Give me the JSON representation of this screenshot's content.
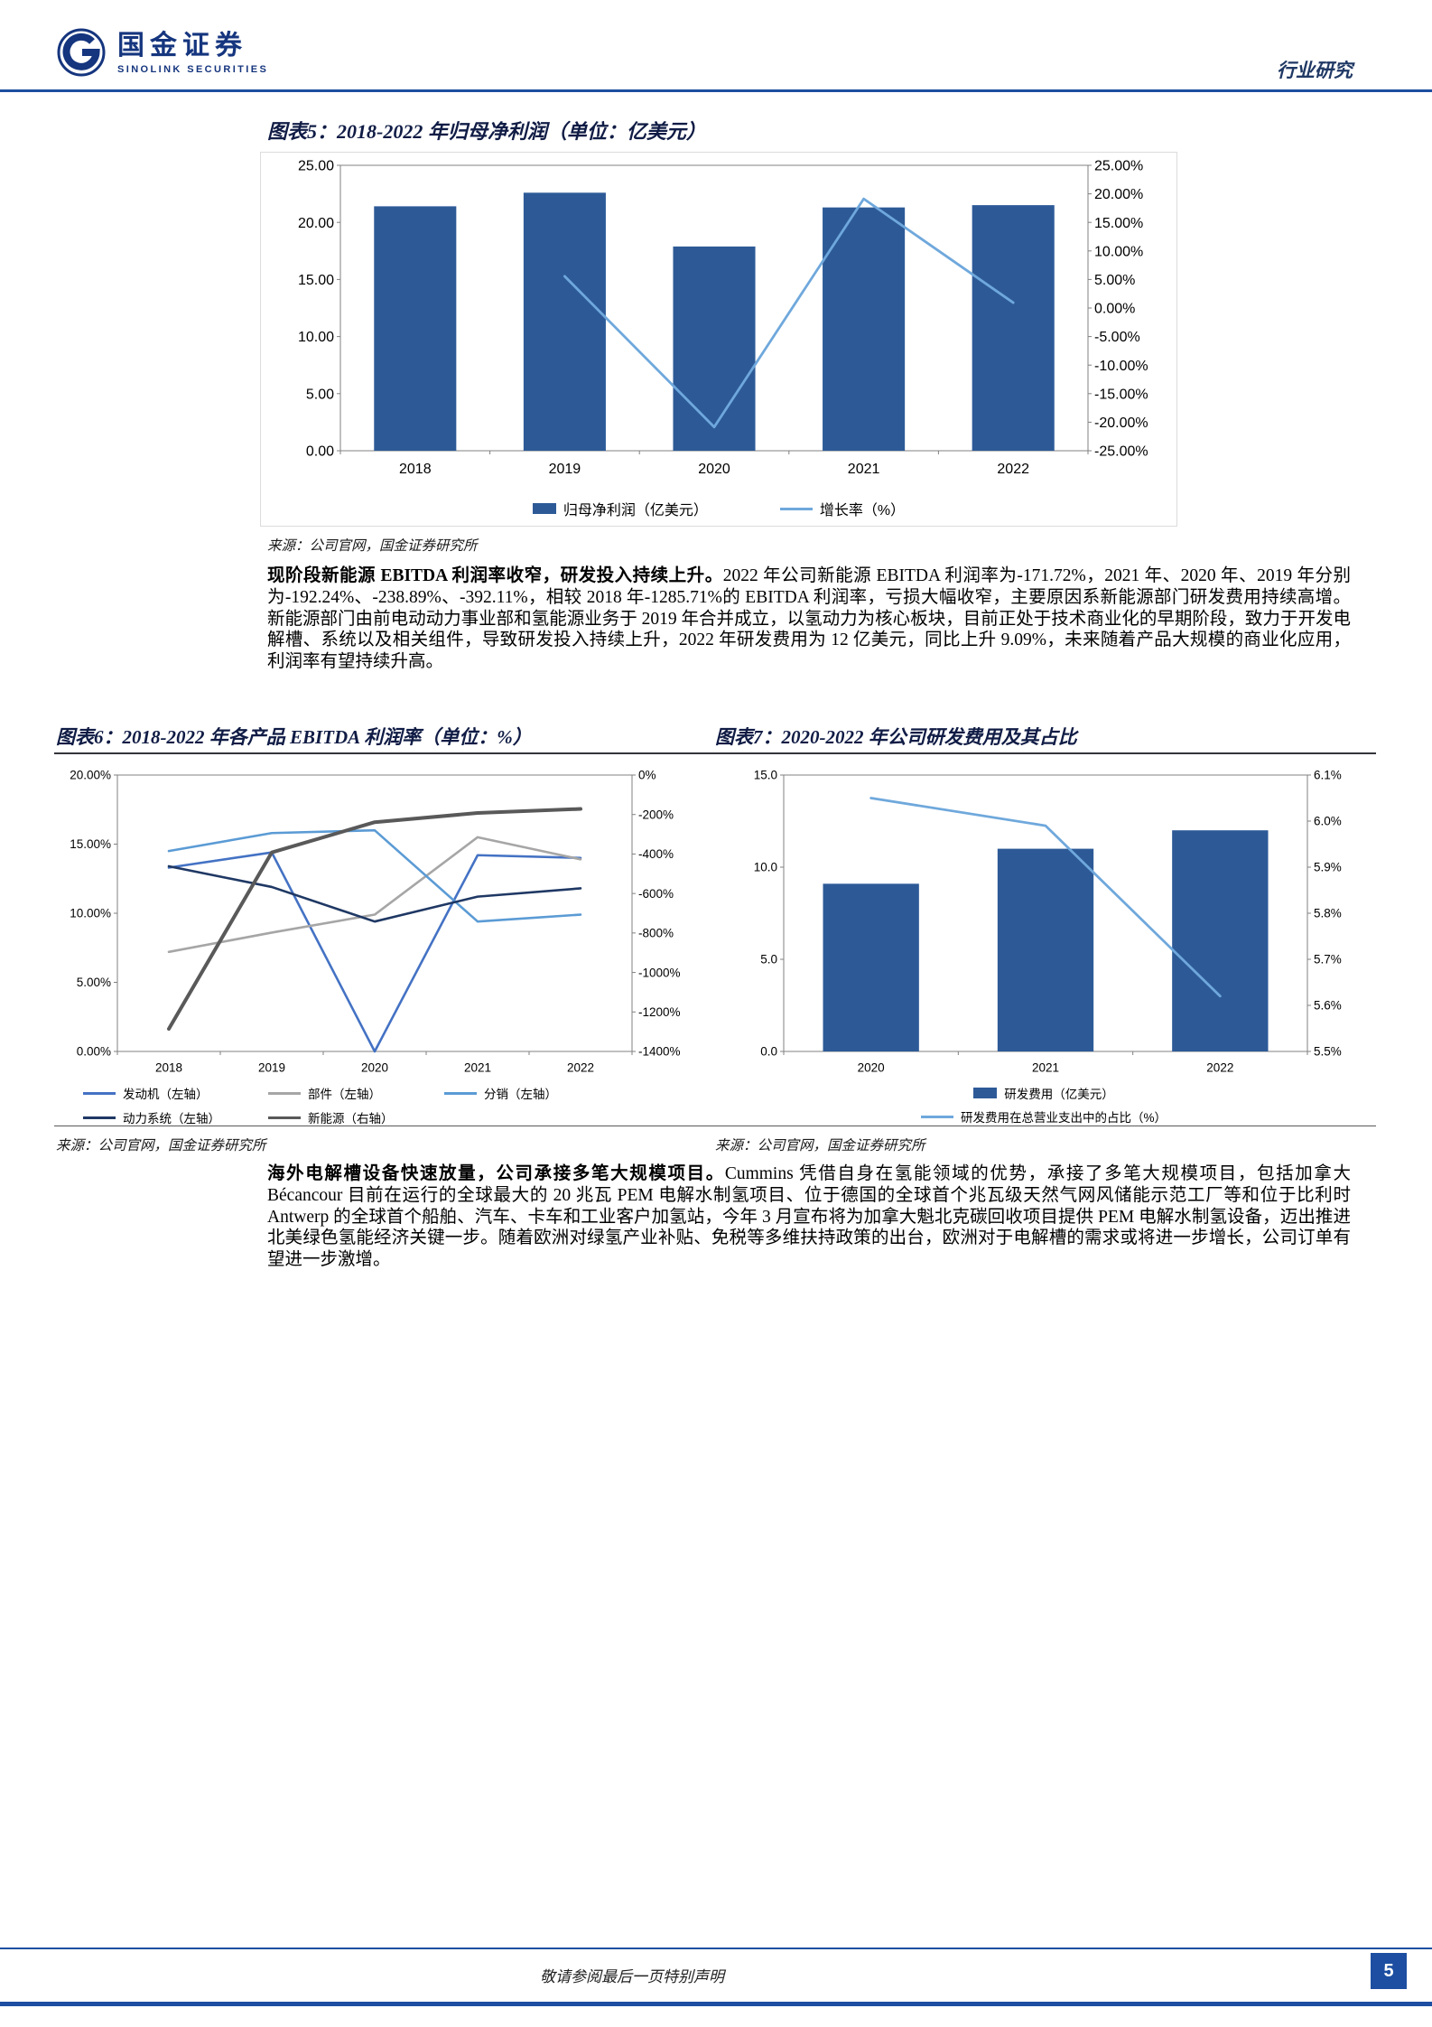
{
  "header": {
    "brand_cn": "国金证券",
    "brand_en": "SINOLINK SECURITIES",
    "section_label": "行业研究"
  },
  "figures": {
    "fig5": {
      "title": "图表5：2018-2022 年归母净利润（单位：亿美元）",
      "source": "来源：公司官网，国金证券研究所"
    },
    "fig6": {
      "title": "图表6：2018-2022 年各产品 EBITDA 利润率（单位：%）",
      "source": "来源：公司官网，国金证券研究所"
    },
    "fig7": {
      "title": "图表7：2020-2022 年公司研发费用及其占比",
      "source": "来源：公司官网，国金证券研究所"
    }
  },
  "paragraphs": {
    "p1_lead": "现阶段新能源 EBITDA 利润率收窄，研发投入持续上升。",
    "p1_rest": "2022 年公司新能源 EBITDA 利润率为-171.72%，2021 年、2020 年、2019 年分别为-192.24%、-238.89%、-392.11%，相较 2018 年-1285.71%的 EBITDA 利润率，亏损大幅收窄，主要原因系新能源部门研发费用持续高增。新能源部门由前电动动力事业部和氢能源业务于 2019 年合并成立，以氢动力为核心板块，目前正处于技术商业化的早期阶段，致力于开发电解槽、系统以及相关组件，导致研发投入持续上升，2022 年研发费用为 12 亿美元，同比上升 9.09%，未来随着产品大规模的商业化应用，利润率有望持续升高。",
    "p2_lead": "海外电解槽设备快速放量，公司承接多笔大规模项目。",
    "p2_rest": "Cummins 凭借自身在氢能领域的优势，承接了多笔大规模项目，包括加拿大 Bécancour 目前在运行的全球最大的 20 兆瓦 PEM 电解水制氢项目、位于德国的全球首个兆瓦级天然气网风储能示范工厂等和位于比利时 Antwerp 的全球首个船舶、汽车、卡车和工业客户加氢站，今年 3 月宣布将为加拿大魁北克碳回收项目提供 PEM 电解水制氢设备，迈出推进北美绿色氢能经济关键一步。随着欧洲对绿氢产业补贴、免税等多维扶持政策的出台，欧洲对于电解槽的需求或将进一步增长，公司订单有望进一步激增。"
  },
  "footer": {
    "disclaimer": "敬请参阅最后一页特别声明",
    "page_number": "5"
  },
  "colors": {
    "accent_blue": "#1d4ea1",
    "bar_blue": "#2d5a97",
    "light_blue_line": "#6fa8dc",
    "title_navy": "#101c45"
  },
  "chart_data": [
    {
      "id": "figure5",
      "type": "bar",
      "title": "2018-2022 年归母净利润（单位：亿美元）",
      "categories": [
        "2018",
        "2019",
        "2020",
        "2021",
        "2022"
      ],
      "left_axis": {
        "min": 0,
        "max": 25,
        "tick_labels": [
          "0.00",
          "5.00",
          "10.00",
          "15.00",
          "20.00",
          "25.00"
        ]
      },
      "right_axis": {
        "min": -25,
        "max": 25,
        "tick_labels": [
          "-25.00%",
          "-20.00%",
          "-15.00%",
          "-10.00%",
          "-5.00%",
          "0.00%",
          "5.00%",
          "10.00%",
          "15.00%",
          "20.00%",
          "25.00%"
        ]
      },
      "grid": false,
      "legend_position": "bottom",
      "series": [
        {
          "name": "归母净利润（亿美元）",
          "type": "bar",
          "axis": "left",
          "color": "#2d5a97",
          "values": [
            21.41,
            22.6,
            17.89,
            21.31,
            21.51
          ]
        },
        {
          "name": "增长率（%）",
          "type": "line",
          "axis": "right",
          "color": "#6fa8dc",
          "width": 2.8,
          "values": [
            null,
            5.56,
            -20.84,
            19.12,
            0.94
          ]
        }
      ]
    },
    {
      "id": "figure6",
      "type": "line",
      "title": "2018-2022 年各产品 EBITDA 利润率（单位：%）",
      "categories": [
        "2018",
        "2019",
        "2020",
        "2021",
        "2022"
      ],
      "left_axis": {
        "min": 0,
        "max": 20,
        "tick_labels": [
          "0.00%",
          "5.00%",
          "10.00%",
          "15.00%",
          "20.00%"
        ]
      },
      "right_axis": {
        "min": -1400,
        "max": 0,
        "tick_labels": [
          "-1400%",
          "-1200%",
          "-1000%",
          "-800%",
          "-600%",
          "-400%",
          "-200%",
          "0%"
        ]
      },
      "grid": false,
      "legend_position": "bottom",
      "series": [
        {
          "name": "发动机（左轴）",
          "type": "line",
          "axis": "left",
          "color": "#4472c4",
          "width": 2.6,
          "values": [
            13.3,
            14.4,
            0.0,
            14.2,
            14.0
          ]
        },
        {
          "name": "部件（左轴）",
          "type": "line",
          "axis": "left",
          "color": "#a6a6a6",
          "width": 2.6,
          "values": [
            7.2,
            8.6,
            9.9,
            15.5,
            13.9
          ]
        },
        {
          "name": "分销（左轴）",
          "type": "line",
          "axis": "left",
          "color": "#5b9bd5",
          "width": 2.6,
          "values": [
            14.5,
            15.8,
            16.0,
            9.4,
            9.9
          ]
        },
        {
          "name": "动力系统（左轴）",
          "type": "line",
          "axis": "left",
          "color": "#1f3864",
          "width": 2.6,
          "values": [
            13.4,
            11.9,
            9.4,
            11.2,
            11.8
          ]
        },
        {
          "name": "新能源（右轴）",
          "type": "line",
          "axis": "right",
          "color": "#595959",
          "width": 4,
          "values": [
            -1285.71,
            -392.11,
            -238.89,
            -192.24,
            -171.72
          ]
        }
      ]
    },
    {
      "id": "figure7",
      "type": "bar",
      "title": "2020-2022 年公司研发费用及其占比",
      "categories": [
        "2020",
        "2021",
        "2022"
      ],
      "left_axis": {
        "min": 0,
        "max": 15,
        "tick_labels": [
          "0.0",
          "5.0",
          "10.0",
          "15.0"
        ]
      },
      "right_axis": {
        "min": 5.5,
        "max": 6.1,
        "tick_labels": [
          "5.5%",
          "5.6%",
          "5.7%",
          "5.8%",
          "5.9%",
          "6.0%",
          "6.1%"
        ]
      },
      "grid": false,
      "legend_position": "bottom",
      "series": [
        {
          "name": "研发费用（亿美元）",
          "type": "bar",
          "axis": "left",
          "color": "#2d5a97",
          "values": [
            9.1,
            11.0,
            12.0
          ]
        },
        {
          "name": "研发费用在总营业支出中的占比（%）",
          "type": "line",
          "axis": "right",
          "color": "#6fa8dc",
          "width": 2.8,
          "values": [
            6.05,
            5.99,
            5.62
          ]
        }
      ]
    }
  ]
}
